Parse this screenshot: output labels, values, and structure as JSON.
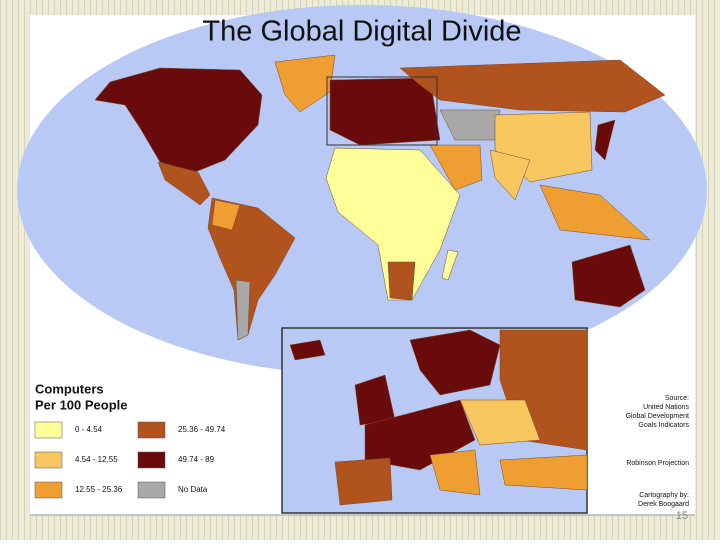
{
  "title": "The Global Digital Divide",
  "legend": {
    "title": [
      "Computers",
      "Per 100 People"
    ],
    "items": [
      {
        "label": "0 - 4.54",
        "color": "#ffff99"
      },
      {
        "label": "4.54 - 12.55",
        "color": "#f8c65e"
      },
      {
        "label": "12.55 - 25.36",
        "color": "#ef9f32"
      },
      {
        "label": "25.36 - 49.74",
        "color": "#b0531d"
      },
      {
        "label": "49.74 - 89",
        "color": "#6a0b0b"
      },
      {
        "label": "No Data",
        "color": "#a8a8a8"
      }
    ]
  },
  "source": [
    "Source:",
    "United Nations",
    "Global Development",
    "Goals Indicators"
  ],
  "projection": "Robinson Projection",
  "credit": [
    "Cartography by:",
    "Derek Boogaard"
  ],
  "slide_number": "15"
}
